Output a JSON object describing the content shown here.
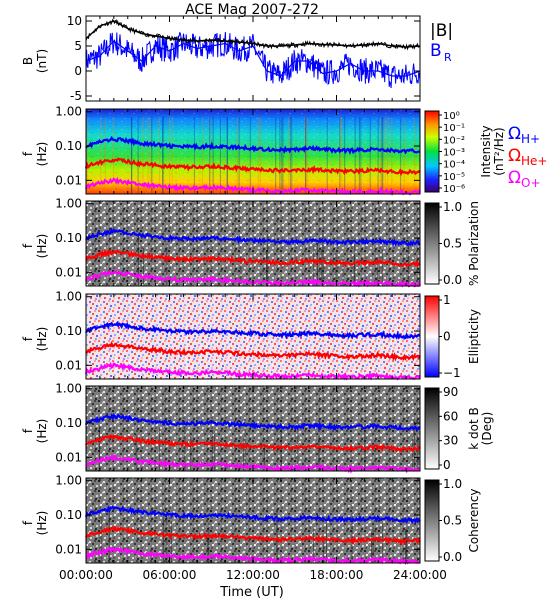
{
  "title": "ACE Mag 2007-272",
  "xlabel": "Time (UT)",
  "x_ticks": [
    "00:00:00",
    "06:00:00",
    "12:00:00",
    "18:00:00",
    "24:00:00"
  ],
  "x_tick_hours": [
    0,
    6,
    12,
    18,
    24
  ],
  "x_range_hours": [
    0,
    24
  ],
  "colors": {
    "total_field": "#000000",
    "radial_field": "#0000ff",
    "h_plus": "#0000ff",
    "he_plus": "#ff0000",
    "o_plus": "#ff00ff"
  },
  "legend": {
    "b_total": "|B|",
    "b_radial": "B",
    "b_radial_sub": "R",
    "omega": "Ω",
    "h_plus": "H+",
    "he_plus": "He+",
    "o_plus": "O+"
  },
  "frequency_ticks": [
    "1.00",
    "0.10",
    "0.01"
  ],
  "frequency_tick_values": [
    1.0,
    0.1,
    0.01
  ],
  "panels": [
    {
      "id": "field",
      "ylabel": "B",
      "yunit": "(nT)",
      "type": "line",
      "yticks": [
        "10",
        "5",
        "0",
        "-5"
      ],
      "ytick_values": [
        10,
        5,
        0,
        -5
      ],
      "ylim": [
        -6,
        11
      ]
    },
    {
      "id": "intensity",
      "ylabel": "f",
      "yunit": "(Hz)",
      "type": "heatmap",
      "colorbar_label": "Intensity",
      "colorbar_unit": "(nT²/Hz)",
      "colorbar_ticks": [
        "10⁰",
        "10⁻¹",
        "10⁻²",
        "10⁻³",
        "10⁻⁴",
        "10⁻⁵",
        "10⁻⁶"
      ],
      "colormap": "rainbow"
    },
    {
      "id": "polarization",
      "ylabel": "f",
      "yunit": "(Hz)",
      "type": "heatmap",
      "colorbar_label": "% Polarization",
      "colorbar_unit": "",
      "colorbar_ticks": [
        "1.0",
        "0.5",
        "0.0"
      ],
      "colormap": "gray"
    },
    {
      "id": "ellipticity",
      "ylabel": "f",
      "yunit": "(Hz)",
      "type": "heatmap",
      "colorbar_label": "Ellipticity",
      "colorbar_unit": "",
      "colorbar_ticks": [
        "1",
        "0",
        "−1"
      ],
      "colormap": "bwr"
    },
    {
      "id": "kdotb",
      "ylabel": "f",
      "yunit": "(Hz)",
      "type": "heatmap",
      "colorbar_label": "k dot B",
      "colorbar_unit": "(Deg)",
      "colorbar_ticks": [
        "90",
        "60",
        "30",
        "0"
      ],
      "colormap": "gray"
    },
    {
      "id": "coherency",
      "ylabel": "f",
      "yunit": "(Hz)",
      "type": "heatmap",
      "colorbar_label": "Coherency",
      "colorbar_unit": "",
      "colorbar_ticks": [
        "1.0",
        "0.5",
        "0.0"
      ],
      "colormap": "gray"
    }
  ],
  "chart_data": {
    "type": "line",
    "title": "ACE Mag 2007-272",
    "xlabel": "Time (UT)",
    "ylabel": "B (nT)",
    "x_unit": "hours UT",
    "xlim": [
      0,
      24
    ],
    "ylim": [
      -6,
      11
    ],
    "grid": false,
    "legend_placement": "right",
    "x": [
      0,
      1,
      2,
      3,
      4,
      5,
      6,
      7,
      8,
      9,
      10,
      11,
      12,
      13,
      14,
      15,
      16,
      17,
      18,
      19,
      20,
      21,
      22,
      23,
      24
    ],
    "series": [
      {
        "name": "|B|",
        "values": [
          6.5,
          9,
          10,
          8.5,
          7.5,
          7,
          6.5,
          6.2,
          6,
          6.2,
          6,
          5.8,
          5.5,
          5,
          5,
          5.2,
          5.5,
          5.3,
          5.2,
          5,
          5.2,
          5.5,
          5,
          4.8,
          5
        ]
      },
      {
        "name": "B_R",
        "values": [
          2,
          3,
          6,
          4,
          2,
          5,
          4,
          5.5,
          4.5,
          5,
          5.5,
          4,
          5,
          0,
          -1,
          2,
          2,
          -0.5,
          0,
          1.5,
          0,
          0,
          -1,
          -1,
          0
        ]
      }
    ],
    "frequency_lines": {
      "ylabel": "f (Hz)",
      "yscale": "log",
      "ylim": [
        0.004,
        1.2
      ],
      "x": [
        0,
        1,
        2,
        3,
        4,
        5,
        6,
        7,
        8,
        9,
        10,
        11,
        12,
        13,
        14,
        15,
        16,
        17,
        18,
        19,
        20,
        21,
        22,
        23,
        24
      ],
      "series": [
        {
          "name": "ΩH+",
          "values": [
            0.1,
            0.13,
            0.16,
            0.14,
            0.12,
            0.11,
            0.1,
            0.095,
            0.095,
            0.1,
            0.095,
            0.09,
            0.085,
            0.08,
            0.077,
            0.078,
            0.085,
            0.08,
            0.075,
            0.074,
            0.078,
            0.08,
            0.074,
            0.07,
            0.072
          ]
        },
        {
          "name": "ΩHe+",
          "values": [
            0.025,
            0.033,
            0.04,
            0.035,
            0.03,
            0.028,
            0.025,
            0.024,
            0.024,
            0.025,
            0.024,
            0.022,
            0.021,
            0.02,
            0.019,
            0.02,
            0.021,
            0.02,
            0.019,
            0.018,
            0.019,
            0.02,
            0.018,
            0.017,
            0.018
          ]
        },
        {
          "name": "ΩO+",
          "values": [
            0.0063,
            0.0083,
            0.01,
            0.0088,
            0.0075,
            0.007,
            0.0063,
            0.006,
            0.006,
            0.0063,
            0.006,
            0.0055,
            0.0053,
            0.005,
            0.0048,
            0.005,
            0.0053,
            0.005,
            0.0048,
            0.0046,
            0.0048,
            0.005,
            0.0046,
            0.0044,
            0.0045
          ]
        }
      ]
    }
  }
}
